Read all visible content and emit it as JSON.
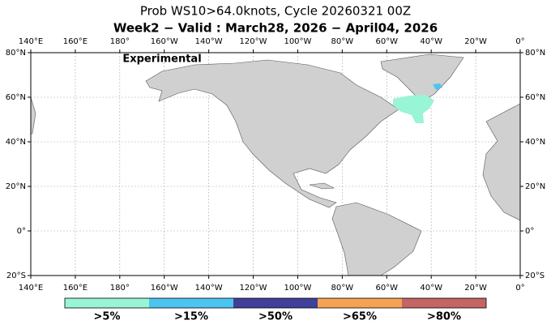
{
  "title": "Prob WS10>64.0knots, Cycle 20260321 00Z",
  "subtitle": "Week2 − Valid : March28, 2026 − April04, 2026",
  "annotation": "Experimental",
  "map": {
    "lon_labels": [
      "140°E",
      "160°E",
      "180°",
      "160°W",
      "140°W",
      "120°W",
      "100°W",
      "80°W",
      "60°W",
      "40°W",
      "20°W",
      "0°"
    ],
    "lat_labels": [
      "80°N",
      "60°N",
      "40°N",
      "20°N",
      "0°",
      "20°S"
    ]
  },
  "legend": {
    "items": [
      {
        "label": ">5%",
        "color": "#98f5d6"
      },
      {
        "label": ">15%",
        "color": "#4ec4f0"
      },
      {
        "label": ">50%",
        "color": "#40409a"
      },
      {
        "label": ">65%",
        "color": "#f5a255"
      },
      {
        "label": ">80%",
        "color": "#c46464"
      }
    ]
  }
}
